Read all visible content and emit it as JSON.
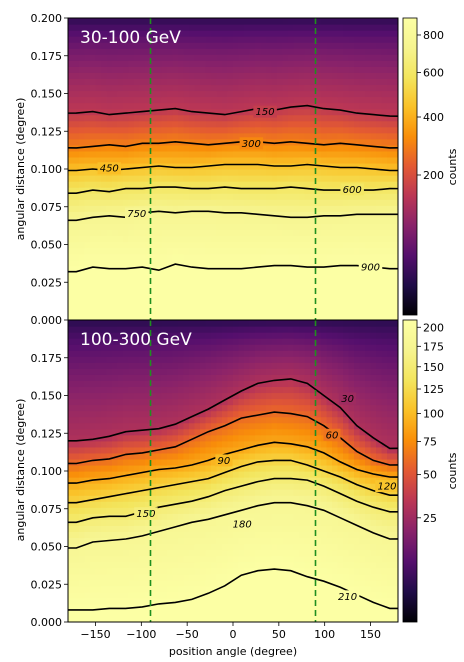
{
  "chart_data": [
    {
      "type": "heatmap",
      "panel_label": "30-100 GeV",
      "xlabel": "",
      "ylabel": "angular distance (degree)",
      "xlim": [
        -180,
        180
      ],
      "ylim": [
        0.0,
        0.2
      ],
      "yticks": [
        "0.000",
        "0.025",
        "0.050",
        "0.075",
        "0.100",
        "0.125",
        "0.150",
        "0.175",
        "0.200"
      ],
      "colorbar": {
        "label": "counts",
        "scale": "sqrt",
        "range": [
          0,
          900
        ],
        "ticks": [
          200,
          400,
          600,
          800
        ]
      },
      "vlines_x": [
        -90,
        90
      ],
      "contours": [
        {
          "level": "150",
          "y": [
            0.137,
            0.138,
            0.136,
            0.137,
            0.138,
            0.139,
            0.14,
            0.138,
            0.137,
            0.136,
            0.138,
            0.14,
            0.139,
            0.141,
            0.142,
            0.14,
            0.139,
            0.137,
            0.136,
            0.135
          ]
        },
        {
          "level": "300",
          "y": [
            0.114,
            0.115,
            0.116,
            0.115,
            0.117,
            0.117,
            0.118,
            0.117,
            0.116,
            0.117,
            0.118,
            0.118,
            0.117,
            0.118,
            0.117,
            0.116,
            0.117,
            0.116,
            0.115,
            0.114
          ]
        },
        {
          "level": "450",
          "y": [
            0.099,
            0.1,
            0.099,
            0.1,
            0.101,
            0.102,
            0.101,
            0.101,
            0.102,
            0.103,
            0.103,
            0.103,
            0.102,
            0.102,
            0.103,
            0.102,
            0.101,
            0.101,
            0.1,
            0.099
          ]
        },
        {
          "level": "600",
          "y": [
            0.084,
            0.086,
            0.085,
            0.087,
            0.087,
            0.088,
            0.088,
            0.087,
            0.087,
            0.088,
            0.087,
            0.087,
            0.087,
            0.088,
            0.087,
            0.086,
            0.086,
            0.086,
            0.086,
            0.087
          ]
        },
        {
          "level": "750",
          "y": [
            0.066,
            0.068,
            0.069,
            0.068,
            0.071,
            0.072,
            0.071,
            0.072,
            0.072,
            0.071,
            0.071,
            0.07,
            0.069,
            0.068,
            0.068,
            0.069,
            0.069,
            0.07,
            0.07,
            0.07
          ]
        },
        {
          "level": "900",
          "y": [
            0.032,
            0.035,
            0.034,
            0.034,
            0.035,
            0.033,
            0.037,
            0.035,
            0.034,
            0.034,
            0.034,
            0.035,
            0.036,
            0.036,
            0.035,
            0.035,
            0.036,
            0.036,
            0.035,
            0.034
          ]
        }
      ],
      "contour_label_positions": [
        {
          "text": "150",
          "x": 35,
          "y": 0.138
        },
        {
          "text": "300",
          "x": 20,
          "y": 0.117
        },
        {
          "text": "450",
          "x": -135,
          "y": 0.1005
        },
        {
          "text": "600",
          "x": 130,
          "y": 0.0865
        },
        {
          "text": "750",
          "x": -105,
          "y": 0.0705
        },
        {
          "text": "900",
          "x": 150,
          "y": 0.035
        }
      ]
    },
    {
      "type": "heatmap",
      "panel_label": "100-300 GeV",
      "xlabel": "position angle (degree)",
      "ylabel": "angular distance (degree)",
      "xlim": [
        -180,
        180
      ],
      "ylim": [
        0.0,
        0.2
      ],
      "xticks": [
        "-150",
        "-100",
        "-50",
        "0",
        "50",
        "100",
        "150"
      ],
      "yticks": [
        "0.000",
        "0.025",
        "0.050",
        "0.075",
        "0.100",
        "0.125",
        "0.150",
        "0.175"
      ],
      "colorbar": {
        "label": "counts",
        "scale": "sqrt",
        "range": [
          0,
          210
        ],
        "ticks": [
          25,
          50,
          75,
          100,
          125,
          150,
          175,
          200
        ]
      },
      "vlines_x": [
        -90,
        90
      ],
      "contours": [
        {
          "level": "30",
          "y": [
            0.12,
            0.121,
            0.123,
            0.126,
            0.127,
            0.128,
            0.131,
            0.136,
            0.141,
            0.147,
            0.153,
            0.158,
            0.16,
            0.161,
            0.158,
            0.15,
            0.142,
            0.13,
            0.122,
            0.115
          ]
        },
        {
          "level": "60",
          "y": [
            0.105,
            0.107,
            0.108,
            0.111,
            0.112,
            0.114,
            0.116,
            0.121,
            0.126,
            0.13,
            0.135,
            0.137,
            0.139,
            0.138,
            0.136,
            0.13,
            0.122,
            0.113,
            0.107,
            0.104
          ]
        },
        {
          "level": "90",
          "y": [
            0.092,
            0.094,
            0.095,
            0.097,
            0.099,
            0.101,
            0.102,
            0.104,
            0.107,
            0.111,
            0.114,
            0.117,
            0.119,
            0.118,
            0.116,
            0.112,
            0.106,
            0.101,
            0.098,
            0.096
          ]
        },
        {
          "level": "120",
          "y": [
            0.079,
            0.081,
            0.083,
            0.085,
            0.087,
            0.089,
            0.091,
            0.093,
            0.095,
            0.099,
            0.103,
            0.106,
            0.107,
            0.107,
            0.104,
            0.1,
            0.096,
            0.091,
            0.087,
            0.084
          ]
        },
        {
          "level": "150",
          "y": [
            0.066,
            0.069,
            0.07,
            0.07,
            0.073,
            0.076,
            0.078,
            0.08,
            0.083,
            0.087,
            0.09,
            0.093,
            0.095,
            0.095,
            0.094,
            0.09,
            0.085,
            0.08,
            0.076,
            0.073
          ]
        },
        {
          "level": "180",
          "y": [
            0.049,
            0.053,
            0.054,
            0.055,
            0.057,
            0.06,
            0.063,
            0.066,
            0.068,
            0.071,
            0.074,
            0.077,
            0.079,
            0.079,
            0.077,
            0.074,
            0.069,
            0.064,
            0.059,
            0.055
          ]
        },
        {
          "level": "210",
          "y": [
            0.008,
            0.008,
            0.009,
            0.009,
            0.01,
            0.012,
            0.013,
            0.015,
            0.019,
            0.024,
            0.031,
            0.034,
            0.035,
            0.034,
            0.03,
            0.027,
            0.023,
            0.018,
            0.013,
            0.009
          ]
        }
      ],
      "contour_label_positions": [
        {
          "text": "30",
          "x": 125,
          "y": 0.148
        },
        {
          "text": "60",
          "x": 108,
          "y": 0.124
        },
        {
          "text": "90",
          "x": -10,
          "y": 0.107
        },
        {
          "text": "120",
          "x": 168,
          "y": 0.09
        },
        {
          "text": "150",
          "x": -95,
          "y": 0.072
        },
        {
          "text": "180",
          "x": 10,
          "y": 0.065
        },
        {
          "text": "210",
          "x": 125,
          "y": 0.017
        }
      ]
    }
  ]
}
